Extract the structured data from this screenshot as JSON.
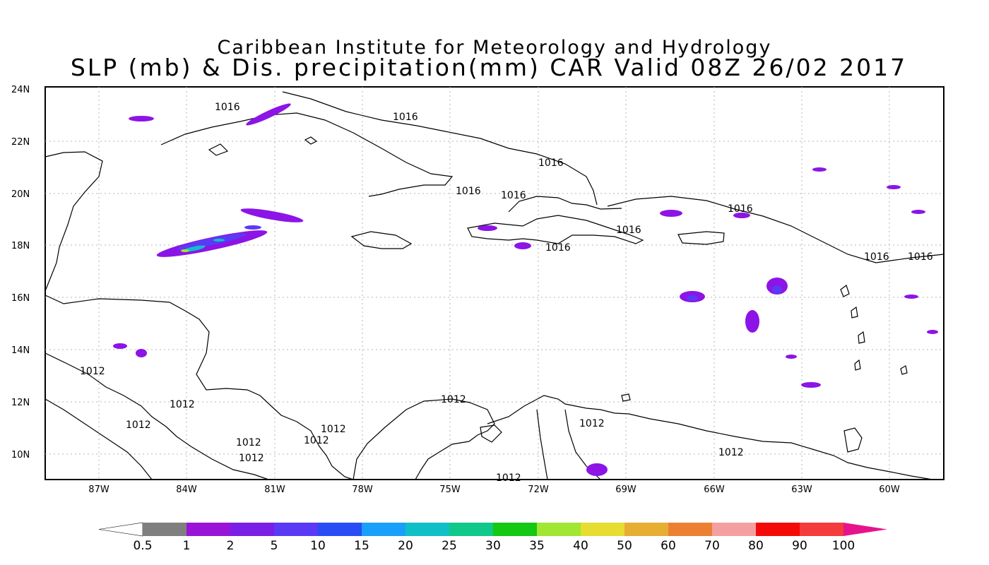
{
  "title_line1": "Caribbean Institute for Meteorology and Hydrology",
  "title_line2": "SLP (mb) & Dis. precipitation(mm) CAR Valid 08Z 26/02 2017",
  "map": {
    "lat_ticks": [
      "24N",
      "22N",
      "20N",
      "18N",
      "16N",
      "14N",
      "12N",
      "10N"
    ],
    "lon_ticks": [
      "87W",
      "84W",
      "81W",
      "78W",
      "75W",
      "72W",
      "69W",
      "66W",
      "63W",
      "60W"
    ],
    "isobar_labels": [
      "1016",
      "1016",
      "1016",
      "1016",
      "1016",
      "1016",
      "1016",
      "1016",
      "1016",
      "1016",
      "1012",
      "1012",
      "1012",
      "1012",
      "1012",
      "1012",
      "1012",
      "1012",
      "1012",
      "1012",
      "1012"
    ],
    "grid": true
  },
  "colorbar": {
    "labels": [
      "0.5",
      "1",
      "2",
      "5",
      "10",
      "15",
      "20",
      "25",
      "30",
      "35",
      "40",
      "50",
      "60",
      "70",
      "80",
      "90",
      "100"
    ],
    "colors": [
      "#ffffff",
      "#7f7f7f",
      "#9a14d8",
      "#7a20e6",
      "#5a3af5",
      "#2a4cf5",
      "#1aa0f8",
      "#10c0c6",
      "#10c88a",
      "#14c814",
      "#a0e632",
      "#e6dc32",
      "#e6ae32",
      "#ec8032",
      "#f4a0a0",
      "#f50a0a",
      "#f53c3c",
      "#e6148c"
    ]
  }
}
